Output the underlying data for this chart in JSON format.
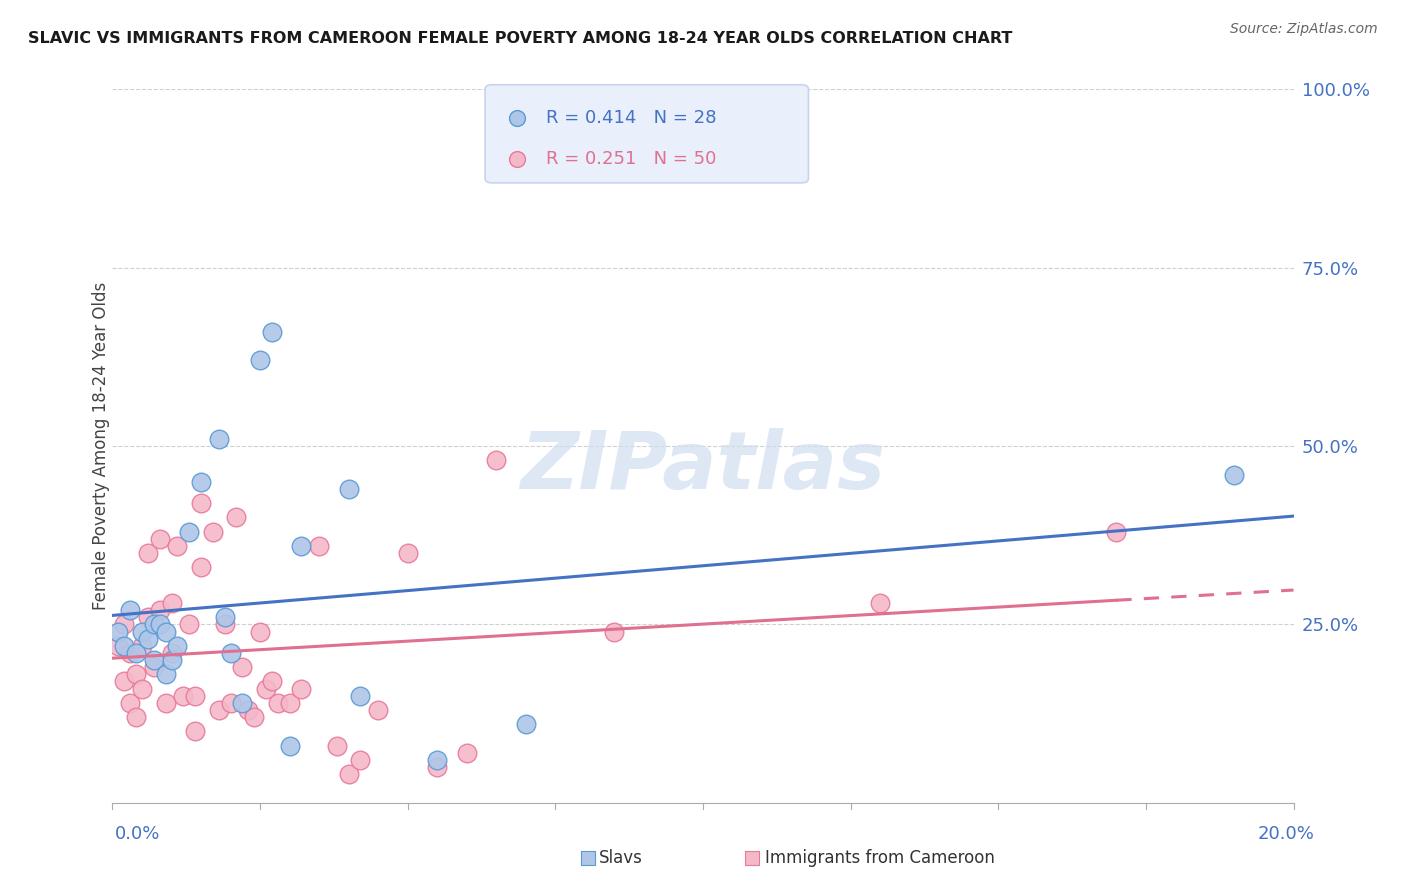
{
  "title": "SLAVIC VS IMMIGRANTS FROM CAMEROON FEMALE POVERTY AMONG 18-24 YEAR OLDS CORRELATION CHART",
  "source": "Source: ZipAtlas.com",
  "ylabel": "Female Poverty Among 18-24 Year Olds",
  "xmin": 0.0,
  "xmax": 0.2,
  "ymin": 0.0,
  "ymax": 1.0,
  "yticks": [
    0.0,
    0.25,
    0.5,
    0.75,
    1.0
  ],
  "ytick_labels": [
    "",
    "25.0%",
    "50.0%",
    "75.0%",
    "100.0%"
  ],
  "slavs_color": "#aec6e8",
  "slavs_edge_color": "#5b9bd5",
  "cameroon_color": "#f4b8c8",
  "cameroon_edge_color": "#e8799a",
  "trendline_slavs_color": "#4472c4",
  "trendline_cameroon_color": "#e07090",
  "legend_bg": "#eaf0fb",
  "legend_border": "#c8d4ec",
  "watermark": "ZIPatlas",
  "watermark_color": "#d0ddf0",
  "slavs_R": "0.414",
  "slavs_N": "28",
  "cameroon_R": "0.251",
  "cameroon_N": "50",
  "slavs_x": [
    0.001,
    0.002,
    0.003,
    0.004,
    0.005,
    0.006,
    0.007,
    0.007,
    0.008,
    0.009,
    0.009,
    0.01,
    0.011,
    0.013,
    0.015,
    0.018,
    0.019,
    0.02,
    0.022,
    0.025,
    0.027,
    0.03,
    0.032,
    0.04,
    0.042,
    0.055,
    0.07,
    0.19
  ],
  "slavs_y": [
    0.24,
    0.22,
    0.27,
    0.21,
    0.24,
    0.23,
    0.25,
    0.2,
    0.25,
    0.18,
    0.24,
    0.2,
    0.22,
    0.38,
    0.45,
    0.51,
    0.26,
    0.21,
    0.14,
    0.62,
    0.66,
    0.08,
    0.36,
    0.44,
    0.15,
    0.06,
    0.11,
    0.46
  ],
  "cameroon_x": [
    0.001,
    0.002,
    0.002,
    0.003,
    0.003,
    0.004,
    0.004,
    0.005,
    0.005,
    0.006,
    0.006,
    0.007,
    0.008,
    0.008,
    0.009,
    0.01,
    0.01,
    0.011,
    0.012,
    0.013,
    0.014,
    0.014,
    0.015,
    0.015,
    0.017,
    0.018,
    0.019,
    0.02,
    0.021,
    0.022,
    0.023,
    0.024,
    0.025,
    0.026,
    0.027,
    0.028,
    0.03,
    0.032,
    0.035,
    0.038,
    0.04,
    0.042,
    0.045,
    0.05,
    0.055,
    0.06,
    0.065,
    0.085,
    0.13,
    0.17
  ],
  "cameroon_y": [
    0.22,
    0.17,
    0.25,
    0.14,
    0.21,
    0.18,
    0.12,
    0.22,
    0.16,
    0.26,
    0.35,
    0.19,
    0.27,
    0.37,
    0.14,
    0.21,
    0.28,
    0.36,
    0.15,
    0.25,
    0.1,
    0.15,
    0.33,
    0.42,
    0.38,
    0.13,
    0.25,
    0.14,
    0.4,
    0.19,
    0.13,
    0.12,
    0.24,
    0.16,
    0.17,
    0.14,
    0.14,
    0.16,
    0.36,
    0.08,
    0.04,
    0.06,
    0.13,
    0.35,
    0.05,
    0.07,
    0.48,
    0.24,
    0.28,
    0.38
  ]
}
